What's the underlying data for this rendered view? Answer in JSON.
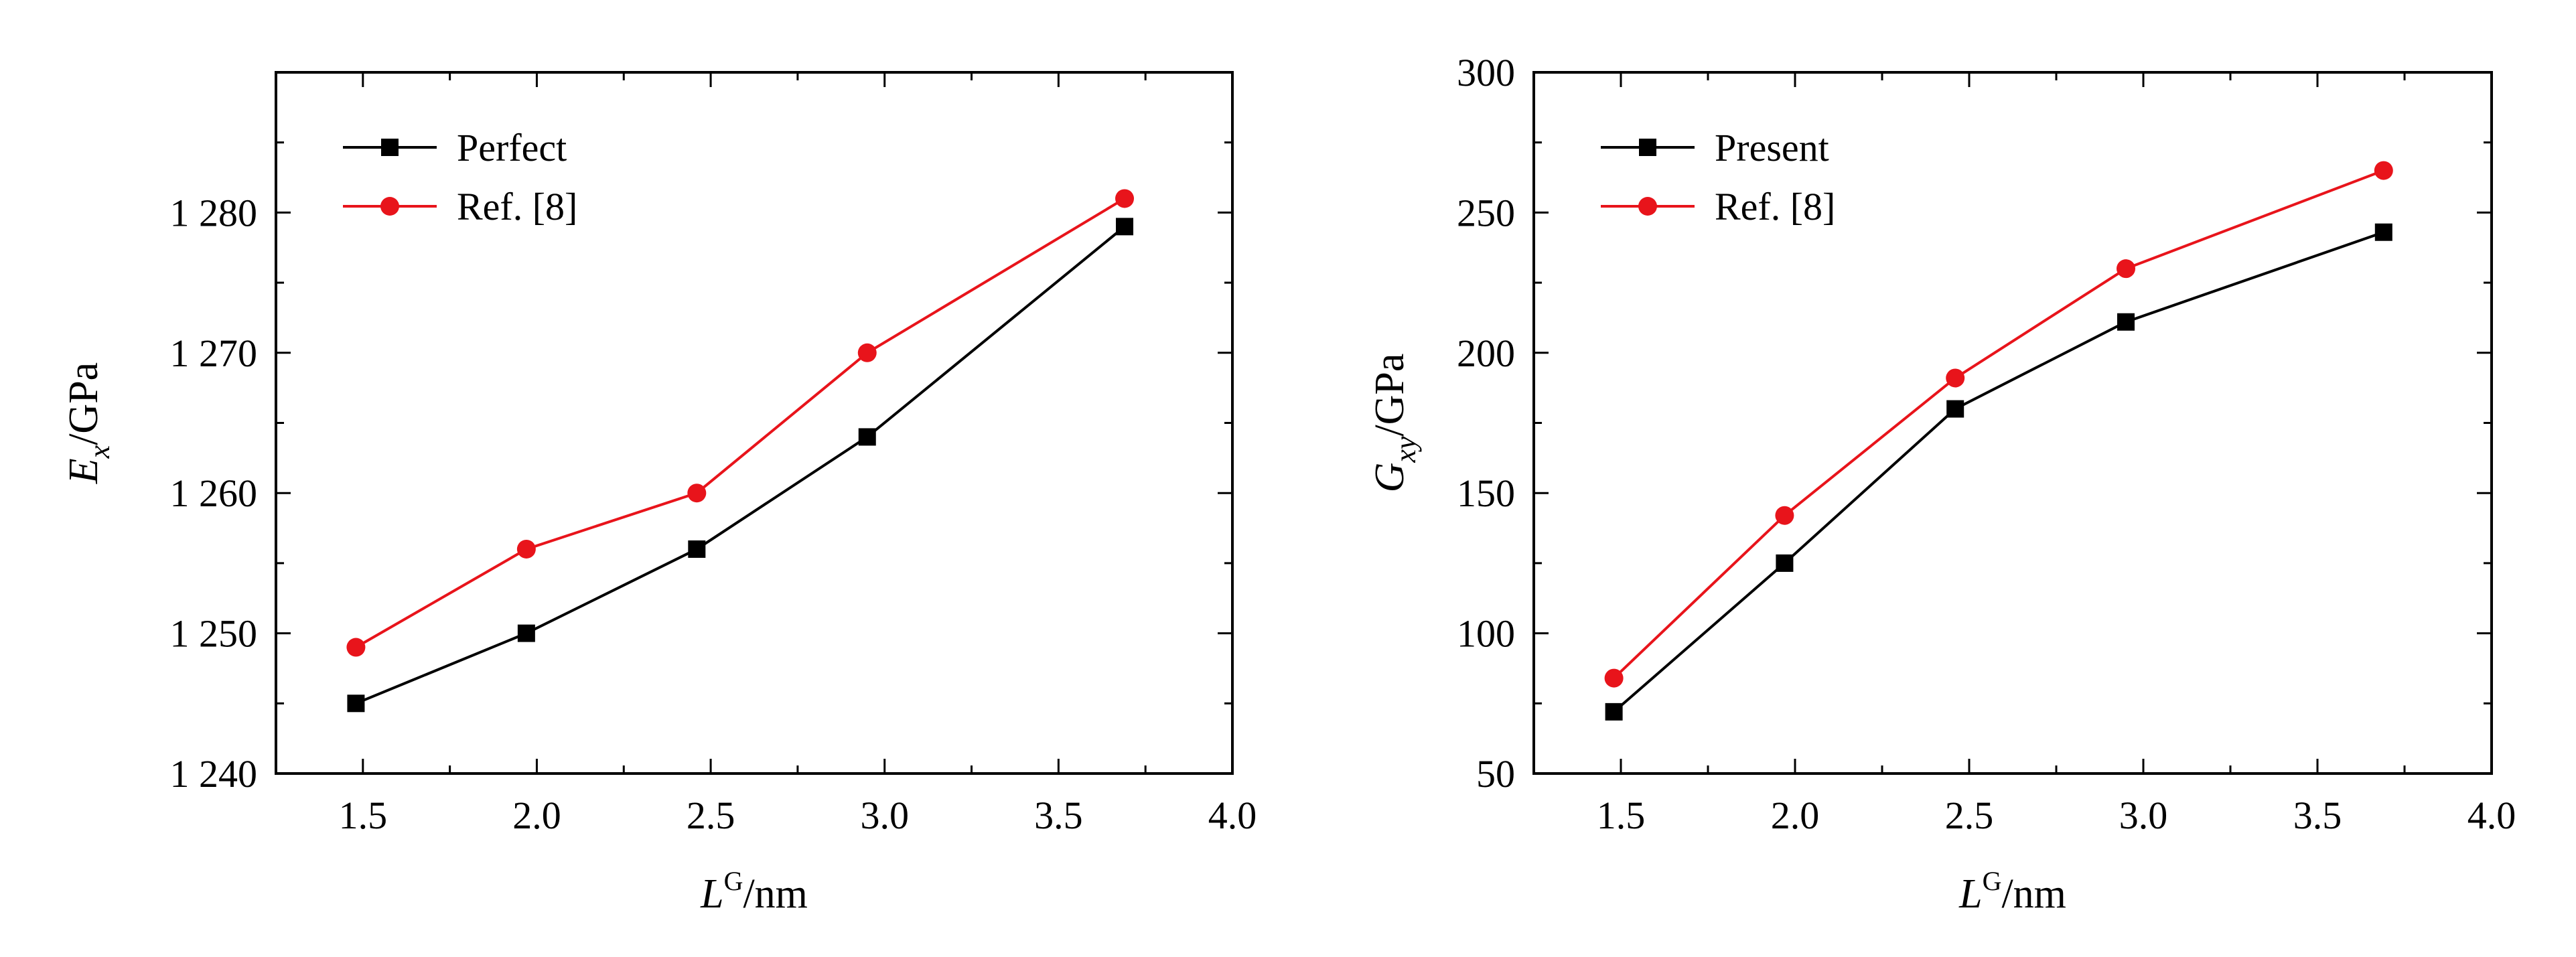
{
  "chart_data": [
    {
      "type": "line",
      "title": "",
      "xlabel": {
        "base": "L",
        "sup": "G",
        "unit": "/nm"
      },
      "ylabel": {
        "base": "E",
        "sub": "x",
        "unit": "/GPa"
      },
      "xlim": [
        1.25,
        4.0
      ],
      "ylim": [
        1240,
        1290
      ],
      "xticks": [
        1.5,
        2.0,
        2.5,
        3.0,
        3.5,
        4.0
      ],
      "xtick_labels": [
        "1.5",
        "2.0",
        "2.5",
        "3.0",
        "3.5",
        "4.0"
      ],
      "yticks": [
        1240,
        1250,
        1260,
        1270,
        1280
      ],
      "ytick_labels": [
        "1 240",
        "1 250",
        "1 260",
        "1 270",
        "1 280"
      ],
      "legend_position": "top-left",
      "grid": false,
      "series": [
        {
          "name": "Perfect",
          "color": "#000000",
          "marker": "square",
          "x": [
            1.48,
            1.97,
            2.46,
            2.95,
            3.69
          ],
          "y": [
            1245,
            1250,
            1256,
            1264,
            1279
          ]
        },
        {
          "name": "Ref. [8]",
          "color": "#e8141b",
          "marker": "circle",
          "x": [
            1.48,
            1.97,
            2.46,
            2.95,
            3.69
          ],
          "y": [
            1249,
            1256,
            1260,
            1270,
            1281
          ]
        }
      ]
    },
    {
      "type": "line",
      "title": "",
      "xlabel": {
        "base": "L",
        "sup": "G",
        "unit": "/nm"
      },
      "ylabel": {
        "base": "G",
        "sub": "xy",
        "unit": "/GPa"
      },
      "xlim": [
        1.25,
        4.0
      ],
      "ylim": [
        50,
        300
      ],
      "xticks": [
        1.5,
        2.0,
        2.5,
        3.0,
        3.5,
        4.0
      ],
      "xtick_labels": [
        "1.5",
        "2.0",
        "2.5",
        "3.0",
        "3.5",
        "4.0"
      ],
      "yticks": [
        50,
        100,
        150,
        200,
        250,
        300
      ],
      "ytick_labels": [
        "50",
        "100",
        "150",
        "200",
        "250",
        "300"
      ],
      "legend_position": "top-left",
      "grid": false,
      "series": [
        {
          "name": "Present",
          "color": "#000000",
          "marker": "square",
          "x": [
            1.48,
            1.97,
            2.46,
            2.95,
            3.69
          ],
          "y": [
            72,
            125,
            180,
            211,
            243
          ]
        },
        {
          "name": "Ref. [8]",
          "color": "#e8141b",
          "marker": "circle",
          "x": [
            1.48,
            1.97,
            2.46,
            2.95,
            3.69
          ],
          "y": [
            84,
            142,
            191,
            230,
            265
          ]
        }
      ]
    }
  ]
}
